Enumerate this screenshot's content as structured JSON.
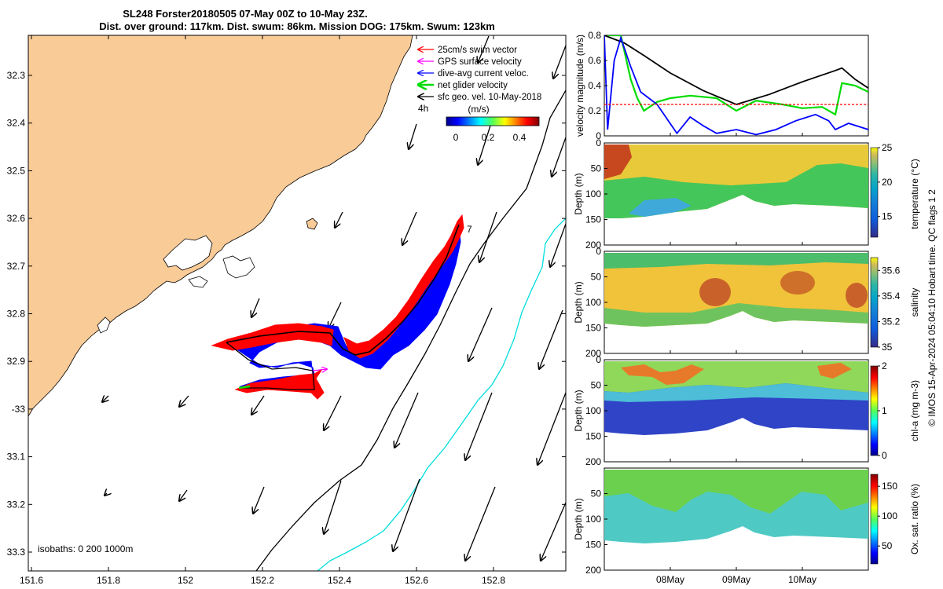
{
  "title": {
    "line1": "SL248 Forster20180505 07-May 00Z to 10-May 23Z.",
    "line2": "Dist. over ground: 117km. Dist. swum: 86km. Mission DOG: 175km. Swum: 123km"
  },
  "map": {
    "lon_ticks": [
      "151.6",
      "151.8",
      "152",
      "152.2",
      "152.4",
      "152.6",
      "152.8"
    ],
    "lat_ticks": [
      "32.3",
      "32.4",
      "32.5",
      "32.6",
      "32.7",
      "32.8",
      "32.9",
      "-33",
      "33.1",
      "33.2",
      "33.3"
    ],
    "isobath_label": "isobaths: 0   200  1000m",
    "time_label": "4h",
    "end_label": "7",
    "land_color": "#f9cb97",
    "legend": [
      {
        "label": "25cm/s swim vector",
        "color": "#ff0000"
      },
      {
        "label": "GPS surface velocity",
        "color": "#ff00ff"
      },
      {
        "label": "dive-avg current veloc.",
        "color": "#0000ff"
      },
      {
        "label": "net glider velocity",
        "color": "#00dd00"
      },
      {
        "label": "sfc geo. vel. 10-May-2018",
        "color": "#000000"
      }
    ],
    "colorbar": {
      "title": "(m/s)",
      "ticks": [
        "0",
        "0.2",
        "0.4"
      ],
      "range": [
        0,
        0.5
      ]
    }
  },
  "chart_data": [
    {
      "type": "line",
      "ylabel": "velocity magnitude (m/s)",
      "ylim": [
        0,
        0.8
      ],
      "yticks": [
        "0",
        "0.2",
        "0.4",
        "0.6",
        "0.8"
      ],
      "xticks": [
        "08May",
        "09May",
        "10May"
      ],
      "x_days": [
        7,
        8,
        9,
        10,
        11
      ],
      "series": [
        {
          "color": "#000000",
          "values": [
            [
              7.0,
              0.8
            ],
            [
              7.3,
              0.74
            ],
            [
              7.6,
              0.64
            ],
            [
              8.0,
              0.5
            ],
            [
              8.5,
              0.36
            ],
            [
              9.0,
              0.25
            ],
            [
              9.5,
              0.33
            ],
            [
              10.0,
              0.43
            ],
            [
              10.5,
              0.52
            ],
            [
              10.6,
              0.54
            ],
            [
              10.8,
              0.45
            ],
            [
              11.0,
              0.38
            ]
          ]
        },
        {
          "color": "#00dd00",
          "values": [
            [
              7.05,
              0.8
            ],
            [
              7.25,
              0.8
            ],
            [
              7.4,
              0.45
            ],
            [
              7.5,
              0.3
            ],
            [
              7.6,
              0.2
            ],
            [
              7.8,
              0.27
            ],
            [
              8.0,
              0.3
            ],
            [
              8.3,
              0.32
            ],
            [
              8.7,
              0.3
            ],
            [
              9.0,
              0.2
            ],
            [
              9.3,
              0.28
            ],
            [
              9.7,
              0.25
            ],
            [
              10.0,
              0.22
            ],
            [
              10.3,
              0.23
            ],
            [
              10.5,
              0.17
            ],
            [
              10.6,
              0.42
            ],
            [
              10.8,
              0.4
            ],
            [
              11.0,
              0.35
            ]
          ]
        },
        {
          "color": "#0000ff",
          "values": [
            [
              7.0,
              0.8
            ],
            [
              7.05,
              0.05
            ],
            [
              7.15,
              0.6
            ],
            [
              7.25,
              0.78
            ],
            [
              7.4,
              0.55
            ],
            [
              7.55,
              0.35
            ],
            [
              7.8,
              0.25
            ],
            [
              8.1,
              0.02
            ],
            [
              8.3,
              0.15
            ],
            [
              8.5,
              0.08
            ],
            [
              8.7,
              0.02
            ],
            [
              9.0,
              0.05
            ],
            [
              9.3,
              0.01
            ],
            [
              9.6,
              0.05
            ],
            [
              9.9,
              0.12
            ],
            [
              10.2,
              0.17
            ],
            [
              10.4,
              0.12
            ],
            [
              10.5,
              0.05
            ],
            [
              10.7,
              0.1
            ],
            [
              11.0,
              0.05
            ]
          ]
        },
        {
          "color": "#ff0000",
          "dashed": true,
          "values": [
            [
              7.0,
              0.25
            ],
            [
              11.0,
              0.25
            ]
          ]
        }
      ]
    },
    {
      "type": "heatmap",
      "ylabel": "Depth (m)",
      "clabel": "temperature (°C)",
      "cticks": [
        "15",
        "20",
        "25"
      ],
      "crange": [
        12,
        25
      ],
      "yticks": [
        "0",
        "50",
        "100",
        "150",
        "200"
      ]
    },
    {
      "type": "heatmap",
      "ylabel": "Depth (m)",
      "clabel": "salinity",
      "cticks": [
        "35",
        "35.2",
        "35.4",
        "35.6"
      ],
      "crange": [
        35,
        35.7
      ],
      "yticks": [
        "0",
        "50",
        "100",
        "150",
        "200"
      ]
    },
    {
      "type": "heatmap",
      "ylabel": "Depth (m)",
      "clabel": "chl-a (mg m-3)",
      "cticks": [
        "0",
        "1",
        "2"
      ],
      "crange": [
        0,
        2
      ],
      "yticks": [
        "0",
        "50",
        "100",
        "150",
        "200"
      ]
    },
    {
      "type": "heatmap",
      "ylabel": "Depth (m)",
      "clabel": "Ox. sat. ratio (%)",
      "cticks": [
        "50",
        "100",
        "150"
      ],
      "crange": [
        20,
        170
      ],
      "yticks": [
        "50",
        "100",
        "150",
        "200"
      ]
    }
  ],
  "credit": "© IMOS 15-Apr-2024 05:04:10 Hobart time. QC flags 1  2"
}
